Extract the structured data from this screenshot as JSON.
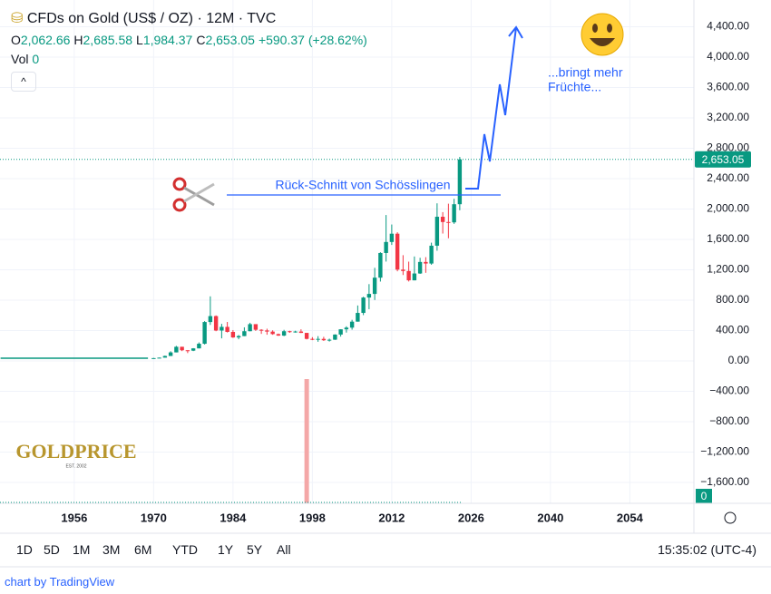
{
  "header": {
    "title": "CFDs on Gold (US$ / OZ) · 12M · TVC",
    "ohlc": [
      {
        "label": "O",
        "value": "2,062.66"
      },
      {
        "label": "H",
        "value": "2,685.58"
      },
      {
        "label": "L",
        "value": "1,984.37"
      },
      {
        "label": "C",
        "value": "2,653.05"
      }
    ],
    "change": "+590.37 (+28.62%)",
    "vol_label": "Vol",
    "vol_value": "0"
  },
  "chart_data": {
    "type": "candlestick",
    "x": [
      1970,
      1971,
      1972,
      1973,
      1974,
      1975,
      1976,
      1977,
      1978,
      1979,
      1980,
      1981,
      1982,
      1983,
      1984,
      1985,
      1986,
      1987,
      1988,
      1989,
      1990,
      1991,
      1992,
      1993,
      1994,
      1995,
      1996,
      1997,
      1998,
      1999,
      2000,
      2001,
      2002,
      2003,
      2004,
      2005,
      2006,
      2007,
      2008,
      2009,
      2010,
      2011,
      2012,
      2013,
      2014,
      2015,
      2016,
      2017,
      2018,
      2019,
      2020,
      2021,
      2022,
      2023,
      2024
    ],
    "open": [
      35,
      37,
      43,
      65,
      112,
      186,
      140,
      135,
      165,
      226,
      512,
      590,
      400,
      448,
      382,
      309,
      327,
      391,
      484,
      410,
      401,
      386,
      353,
      333,
      391,
      383,
      387,
      369,
      290,
      288,
      290,
      272,
      279,
      347,
      416,
      438,
      517,
      632,
      834,
      882,
      1096,
      1421,
      1566,
      1675,
      1202,
      1184,
      1061,
      1151,
      1303,
      1282,
      1517,
      1898,
      1829,
      1824,
      2063
    ],
    "high": [
      39,
      44,
      70,
      127,
      198,
      186,
      140,
      168,
      244,
      524,
      850,
      599,
      488,
      513,
      406,
      341,
      442,
      502,
      484,
      418,
      424,
      403,
      360,
      409,
      397,
      397,
      416,
      369,
      313,
      326,
      317,
      293,
      350,
      417,
      456,
      541,
      730,
      845,
      1011,
      1226,
      1431,
      1921,
      1796,
      1694,
      1392,
      1307,
      1375,
      1358,
      1366,
      1557,
      2075,
      1959,
      2070,
      2135,
      2686
    ],
    "low": [
      35,
      37,
      43,
      64,
      112,
      129,
      103,
      129,
      165,
      216,
      474,
      391,
      297,
      374,
      303,
      285,
      326,
      390,
      395,
      356,
      345,
      344,
      330,
      326,
      370,
      372,
      367,
      283,
      273,
      252,
      263,
      255,
      277,
      320,
      373,
      411,
      517,
      603,
      681,
      802,
      1045,
      1308,
      1527,
      1180,
      1131,
      1046,
      1061,
      1146,
      1160,
      1266,
      1451,
      1677,
      1615,
      1804,
      1984
    ],
    "close": [
      37,
      43,
      65,
      112,
      186,
      140,
      135,
      165,
      226,
      512,
      590,
      400,
      448,
      382,
      309,
      327,
      391,
      484,
      410,
      401,
      386,
      353,
      333,
      391,
      383,
      387,
      369,
      290,
      288,
      290,
      272,
      279,
      347,
      416,
      438,
      517,
      632,
      834,
      882,
      1096,
      1421,
      1566,
      1675,
      1202,
      1184,
      1061,
      1151,
      1303,
      1282,
      1517,
      1898,
      1829,
      1824,
      2063,
      2653
    ],
    "flat_line": {
      "x": [
        1943,
        1969
      ],
      "values": [
        35,
        35
      ]
    },
    "volume": {
      "x": [
        1997
      ],
      "values": [
        1
      ],
      "label": "0"
    },
    "xlim": [
      1942.9,
      2065.3
    ],
    "ylim": [
      -1875,
      4752
    ],
    "xticks": [
      1956,
      1970,
      1984,
      1998,
      2012,
      2026,
      2040,
      2054
    ],
    "yticks": [
      {
        "value": -1600,
        "label": "−1,600.00"
      },
      {
        "value": -1200,
        "label": "−1,200.00"
      },
      {
        "value": -800,
        "label": "−800.00"
      },
      {
        "value": -400,
        "label": "−400.00"
      },
      {
        "value": 0,
        "label": "0.00"
      },
      {
        "value": 400,
        "label": "400.00"
      },
      {
        "value": 800,
        "label": "800.00"
      },
      {
        "value": 1200,
        "label": "1,200.00"
      },
      {
        "value": 1600,
        "label": "1,600.00"
      },
      {
        "value": 2000,
        "label": "2,000.00"
      },
      {
        "value": 2400,
        "label": "2,400.00"
      },
      {
        "value": 2800,
        "label": "2,800.00"
      },
      {
        "value": 3200,
        "label": "3,200.00"
      },
      {
        "value": 3600,
        "label": "3,600.00"
      },
      {
        "value": 4000,
        "label": "4,000.00"
      },
      {
        "value": 4400,
        "label": "4,400.00"
      }
    ],
    "last_price": {
      "value": 2653.05,
      "label": "2,653.05"
    },
    "annotations": [
      "Rück-Schnitt von Schösslingen",
      "...bringt mehr",
      "Früchte..."
    ],
    "up_color": "#089981",
    "down_color": "#f23645",
    "volume_color": "#f4a7a7",
    "grid": true
  },
  "logo": {
    "name": "GOLDPRICE",
    "est": "EST. 2002"
  },
  "toolbar": {
    "ranges": [
      "1D",
      "5D",
      "1M",
      "3M",
      "6M",
      "YTD",
      "1Y",
      "5Y",
      "All"
    ],
    "time": "15:35:02 (UTC-4)"
  },
  "footer": "chart by TradingView"
}
